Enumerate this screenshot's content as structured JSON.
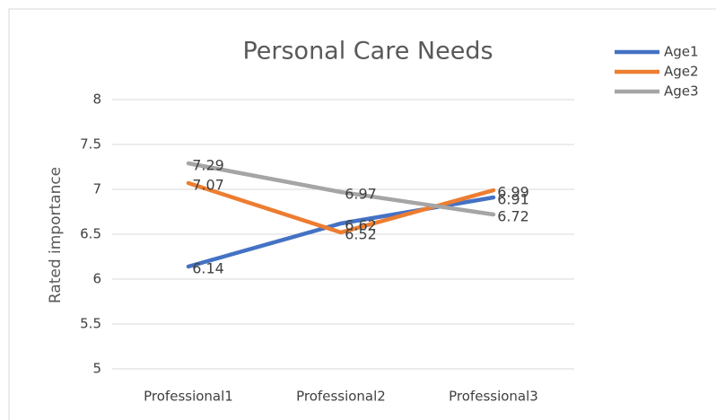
{
  "chart_data": {
    "type": "line",
    "title": "Personal Care Needs",
    "y_label": "Rated importance",
    "categories": [
      "Professional1",
      "Professional2",
      "Professional3"
    ],
    "series": [
      {
        "name": "Age1",
        "color": "#4472c4",
        "values": [
          6.14,
          6.62,
          6.91
        ]
      },
      {
        "name": "Age2",
        "color": "#ed7d31",
        "values": [
          7.07,
          6.52,
          6.99
        ]
      },
      {
        "name": "Age3",
        "color": "#a5a5a5",
        "values": [
          7.29,
          6.97,
          6.72
        ]
      }
    ],
    "ylim": [
      5,
      8
    ],
    "yticks": [
      5,
      5.5,
      6,
      6.5,
      7,
      7.5,
      8
    ],
    "grid": true,
    "legend": "right",
    "data_labels": true
  }
}
